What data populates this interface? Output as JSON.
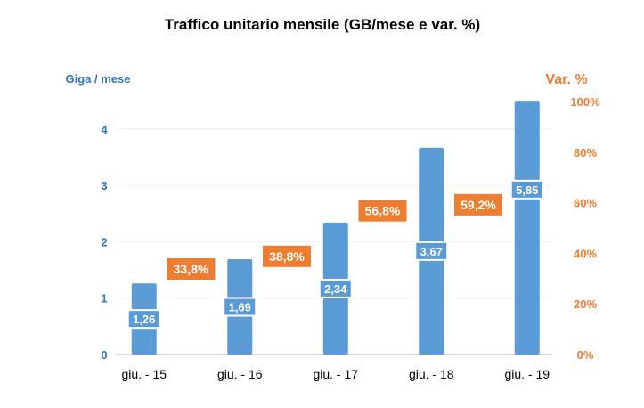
{
  "chart_data": {
    "type": "bar",
    "title": "Traffico unitario mensile (GB/mese e var. %)",
    "ylabel": "Giga / mese",
    "y2label": "Var. %",
    "categories": [
      "giu. - 15",
      "giu. - 16",
      "giu. - 17",
      "giu. - 18",
      "giu. - 19"
    ],
    "values": [
      1.26,
      1.69,
      2.34,
      3.67,
      5.85
    ],
    "value_labels": [
      "1,26",
      "1,69",
      "2,34",
      "3,67",
      "5,85"
    ],
    "ylim": [
      0,
      4.5
    ],
    "yticks": [
      0,
      1,
      2,
      3,
      4
    ],
    "y2lim": [
      0,
      100
    ],
    "y2ticks": [
      "0%",
      "20%",
      "40%",
      "60%",
      "80%",
      "100%"
    ],
    "variations": [
      33.8,
      38.8,
      56.8,
      59.2
    ],
    "variation_labels": [
      "33,8%",
      "38,8%",
      "56,8%",
      "59,2%"
    ],
    "grid": true,
    "colors": {
      "bar": "#5b9bd5",
      "variation": "#ed7d31",
      "left_axis": "#2e75b6",
      "right_axis": "#ed7d31"
    }
  }
}
